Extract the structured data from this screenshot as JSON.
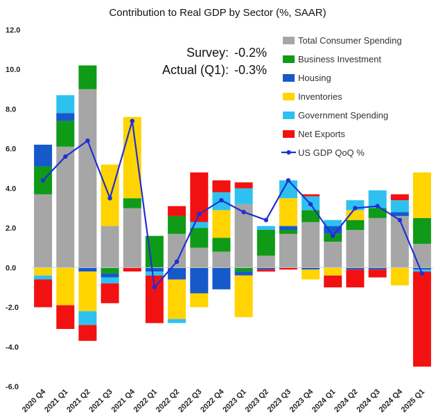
{
  "chart_data": {
    "type": "bar",
    "stacked": true,
    "title": "Contribution to Real GDP by Sector (%, SAAR)",
    "xlabel": "",
    "ylabel": "",
    "ylim": [
      -6,
      12
    ],
    "yticks": [
      "12.0",
      "10.0",
      "8.0",
      "6.0",
      "4.0",
      "2.0",
      "0.0",
      "-2.0",
      "-4.0",
      "-6.0"
    ],
    "ytick_values": [
      12,
      10,
      8,
      6,
      4,
      2,
      0,
      -2,
      -4,
      -6
    ],
    "grid": false,
    "legend_position": "top-right",
    "categories": [
      "2020 Q4",
      "2021 Q1",
      "2021 Q2",
      "2021 Q3",
      "2021 Q4",
      "2022 Q1",
      "2022 Q2",
      "2022 Q3",
      "2022 Q4",
      "2023 Q1",
      "2023 Q2",
      "2023 Q3",
      "2023 Q4",
      "2024 Q1",
      "2024 Q2",
      "2024 Q3",
      "2024 Q4",
      "2025 Q1"
    ],
    "series": [
      {
        "name": "Total Consumer Spending",
        "color": "#a6a6a6",
        "values": [
          3.7,
          6.1,
          9.0,
          2.1,
          3.0,
          0.0,
          1.7,
          1.0,
          0.8,
          3.2,
          0.6,
          1.7,
          2.3,
          1.3,
          1.9,
          2.5,
          2.6,
          1.2
        ]
      },
      {
        "name": "Business Investment",
        "color": "#0f9a18",
        "values": [
          1.4,
          1.3,
          1.2,
          -0.3,
          0.5,
          1.6,
          0.9,
          1.0,
          0.7,
          -0.2,
          1.3,
          0.2,
          0.6,
          0.4,
          0.5,
          0.5,
          0.0,
          1.3
        ]
      },
      {
        "name": "Housing",
        "color": "#1659c9",
        "values": [
          1.1,
          0.4,
          -0.2,
          -0.2,
          0.0,
          -0.2,
          -0.6,
          -1.3,
          -1.1,
          -0.2,
          -0.1,
          0.2,
          -0.1,
          0.4,
          -0.1,
          -0.1,
          0.2,
          -0.1
        ]
      },
      {
        "name": "Inventories",
        "color": "#ffd400",
        "values": [
          -0.4,
          -1.9,
          -2.0,
          3.1,
          4.1,
          0.0,
          -2.0,
          -0.7,
          1.4,
          -2.1,
          0.0,
          1.4,
          -0.5,
          -0.4,
          0.5,
          0.0,
          -0.9,
          2.3
        ]
      },
      {
        "name": "Government Spending",
        "color": "#2ec1ef",
        "values": [
          -0.2,
          0.9,
          -0.7,
          -0.3,
          0.0,
          -0.2,
          -0.2,
          0.3,
          0.9,
          0.8,
          0.2,
          0.9,
          0.7,
          0.3,
          0.5,
          0.9,
          0.6,
          -0.1
        ]
      },
      {
        "name": "Net Exports",
        "color": "#f21111",
        "values": [
          -1.4,
          -1.2,
          -0.8,
          -1.0,
          -0.2,
          -2.4,
          0.5,
          2.5,
          0.6,
          0.3,
          -0.1,
          -0.1,
          0.1,
          -0.6,
          -0.9,
          -0.4,
          0.3,
          -4.8
        ]
      }
    ],
    "line_series": {
      "name": "US GDP QoQ %",
      "color": "#1f2fd6",
      "values": [
        4.4,
        5.6,
        6.4,
        3.5,
        7.4,
        -1.0,
        0.3,
        2.7,
        3.4,
        2.8,
        2.4,
        4.4,
        3.2,
        1.6,
        3.0,
        3.1,
        2.4,
        -0.3
      ]
    },
    "annotations": [
      {
        "label": "Survey:",
        "value": "-0.2%"
      },
      {
        "label": "Actual (Q1):",
        "value": "-0.3%"
      }
    ]
  }
}
